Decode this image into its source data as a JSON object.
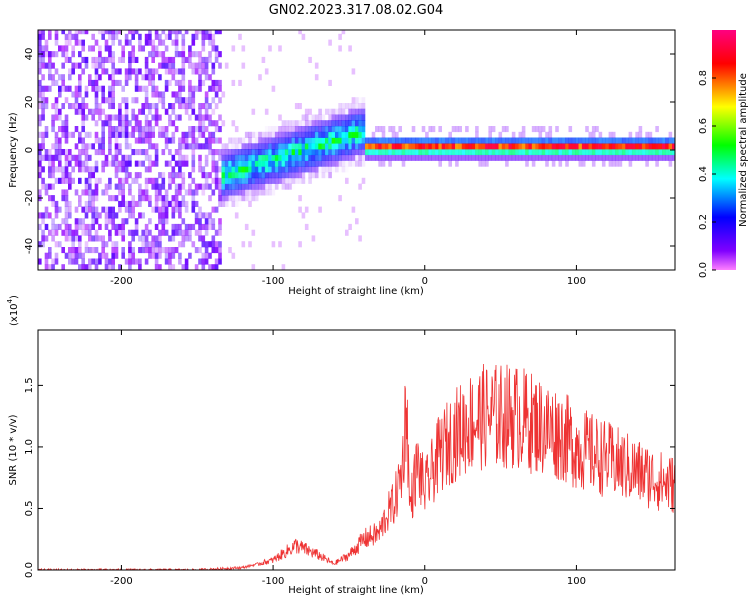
{
  "figure_title": "GN02.2023.317.08.02.G04",
  "chart_data": [
    {
      "type": "heatmap",
      "title": "GN02.2023.317.08.02.G04",
      "xlabel": "Height of straight line (km)",
      "ylabel": "Frequency (Hz)",
      "xlim": [
        -255,
        165
      ],
      "ylim": [
        -50,
        50
      ],
      "x_ticks": [
        -200,
        -100,
        0,
        100
      ],
      "y_ticks": [
        -40,
        -20,
        0,
        20,
        40
      ],
      "colorbar": {
        "label": "Normalized spectral amplitude",
        "range": [
          0,
          1
        ],
        "ticks": [
          0.0,
          0.2,
          0.4,
          0.6,
          0.8
        ],
        "colormap": [
          "#ff80ff",
          "#8000ff",
          "#0000ff",
          "#00ffff",
          "#00ff00",
          "#ffff00",
          "#ff0000",
          "#ff0080"
        ]
      },
      "regions": [
        {
          "x_range": [
            -255,
            -135
          ],
          "freq_range": [
            -50,
            50
          ],
          "amplitude": 0.1,
          "description": "broadband noise"
        },
        {
          "x_range": [
            -135,
            -40
          ],
          "freq_center": [
            -12,
            7
          ],
          "freq_halfwidth": 10,
          "amplitude": 0.35
        },
        {
          "x_range": [
            -40,
            165
          ],
          "freq_center": 0,
          "freq_halfwidth": 5,
          "amplitude": 0.9
        }
      ]
    },
    {
      "type": "line",
      "xlabel": "Height of straight line (km)",
      "ylabel": "SNR (10 * v/v)",
      "y_multiplier": "(x10",
      "y_multiplier_exp": "4",
      "xlim": [
        -255,
        165
      ],
      "ylim": [
        0,
        1.95
      ],
      "x_ticks": [
        -200,
        -100,
        0,
        100
      ],
      "y_ticks": [
        0.0,
        0.5,
        1.0,
        1.5
      ],
      "series": [
        {
          "color": "#ee3333",
          "x": [
            -255,
            -200,
            -150,
            -120,
            -100,
            -85,
            -70,
            -60,
            -50,
            -40,
            -30,
            -25,
            -20,
            -15,
            -12,
            -10,
            -5,
            0,
            10,
            20,
            30,
            40,
            50,
            60,
            70,
            80,
            90,
            100,
            110,
            120,
            130,
            140,
            150,
            160,
            165
          ],
          "y": [
            0.0,
            0.0,
            0.0,
            0.02,
            0.08,
            0.2,
            0.12,
            0.05,
            0.12,
            0.25,
            0.3,
            0.45,
            0.55,
            0.8,
            1.4,
            0.5,
            0.85,
            0.65,
            0.95,
            1.1,
            1.2,
            1.25,
            1.25,
            1.25,
            1.2,
            1.15,
            1.1,
            1.0,
            0.95,
            0.9,
            0.85,
            0.8,
            0.75,
            0.7,
            0.7
          ]
        }
      ]
    }
  ]
}
